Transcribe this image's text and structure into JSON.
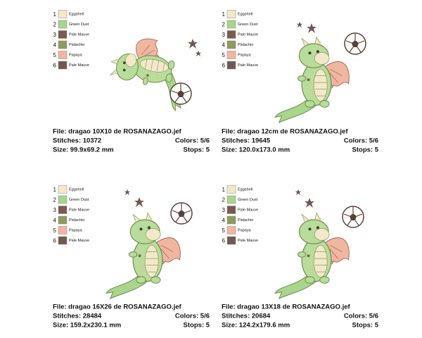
{
  "panels": [
    {
      "colors": [
        {
          "number": "1",
          "name": "Eggshell",
          "color": "#f4e8cb"
        },
        {
          "number": "2",
          "name": "Green Dust",
          "color": "#a9d58c"
        },
        {
          "number": "3",
          "name": "Pale Mauve",
          "color": "#7b5b4f"
        },
        {
          "number": "4",
          "name": "Pistachio",
          "color": "#8d9b5c"
        },
        {
          "number": "5",
          "name": "Papaya",
          "color": "#f1b6a0"
        },
        {
          "number": "6",
          "name": "Pale Mauve",
          "color": "#6e5a50"
        }
      ],
      "file": "File: dragao 10X10 de ROSANAZAGO.jef",
      "stitches": "Stitches: 10372",
      "colors_count": "Colors: 5/6",
      "size": "Size: 99.9x69.2 mm",
      "stops": "Stops: 5"
    },
    {
      "colors": [
        {
          "number": "1",
          "name": "Eggshell",
          "color": "#f4e8cb"
        },
        {
          "number": "2",
          "name": "Green Dust",
          "color": "#a9d58c"
        },
        {
          "number": "3",
          "name": "Pale Mauve",
          "color": "#7b5b4f"
        },
        {
          "number": "4",
          "name": "Pistachio",
          "color": "#8d9b5c"
        },
        {
          "number": "5",
          "name": "Papaya",
          "color": "#f1b6a0"
        },
        {
          "number": "6",
          "name": "Pale Mauve",
          "color": "#6e5a50"
        }
      ],
      "file": "File: dragao 12cm de ROSANAZAGO.jef",
      "stitches": "Stitches: 19645",
      "colors_count": "Colors: 5/6",
      "size": "Size: 120.0x173.0 mm",
      "stops": "Stops: 5"
    },
    {
      "colors": [
        {
          "number": "1",
          "name": "Eggshell",
          "color": "#f4e8cb"
        },
        {
          "number": "2",
          "name": "Green Dust",
          "color": "#a9d58c"
        },
        {
          "number": "3",
          "name": "Pale Mauve",
          "color": "#7b5b4f"
        },
        {
          "number": "4",
          "name": "Pistachio",
          "color": "#8d9b5c"
        },
        {
          "number": "5",
          "name": "Papaya",
          "color": "#f1b6a0"
        },
        {
          "number": "6",
          "name": "Pale Mauve",
          "color": "#6e5a50"
        }
      ],
      "file": "File: dragao 16X26 de ROSANAZAGO.jef",
      "stitches": "Stitches: 28484",
      "colors_count": "Colors: 5/6",
      "size": "Size: 159.2x230.1 mm",
      "stops": "Stops: 5"
    },
    {
      "colors": [
        {
          "number": "1",
          "name": "Eggshell",
          "color": "#f4e8cb"
        },
        {
          "number": "2",
          "name": "Green Dust",
          "color": "#a9d58c"
        },
        {
          "number": "3",
          "name": "Pale Mauve",
          "color": "#7b5b4f"
        },
        {
          "number": "4",
          "name": "Pistachio",
          "color": "#8d9b5c"
        },
        {
          "number": "5",
          "name": "Papaya",
          "color": "#f1b6a0"
        },
        {
          "number": "6",
          "name": "Pale Mauve",
          "color": "#6e5a50"
        }
      ],
      "file": "File: dragao 13X18 de ROSANAZAGO.jef",
      "stitches": "Stitches: 20684",
      "colors_count": "Colors: 5/6",
      "size": "Size: 124.2x179.6 mm",
      "stops": "Stops: 5"
    }
  ]
}
